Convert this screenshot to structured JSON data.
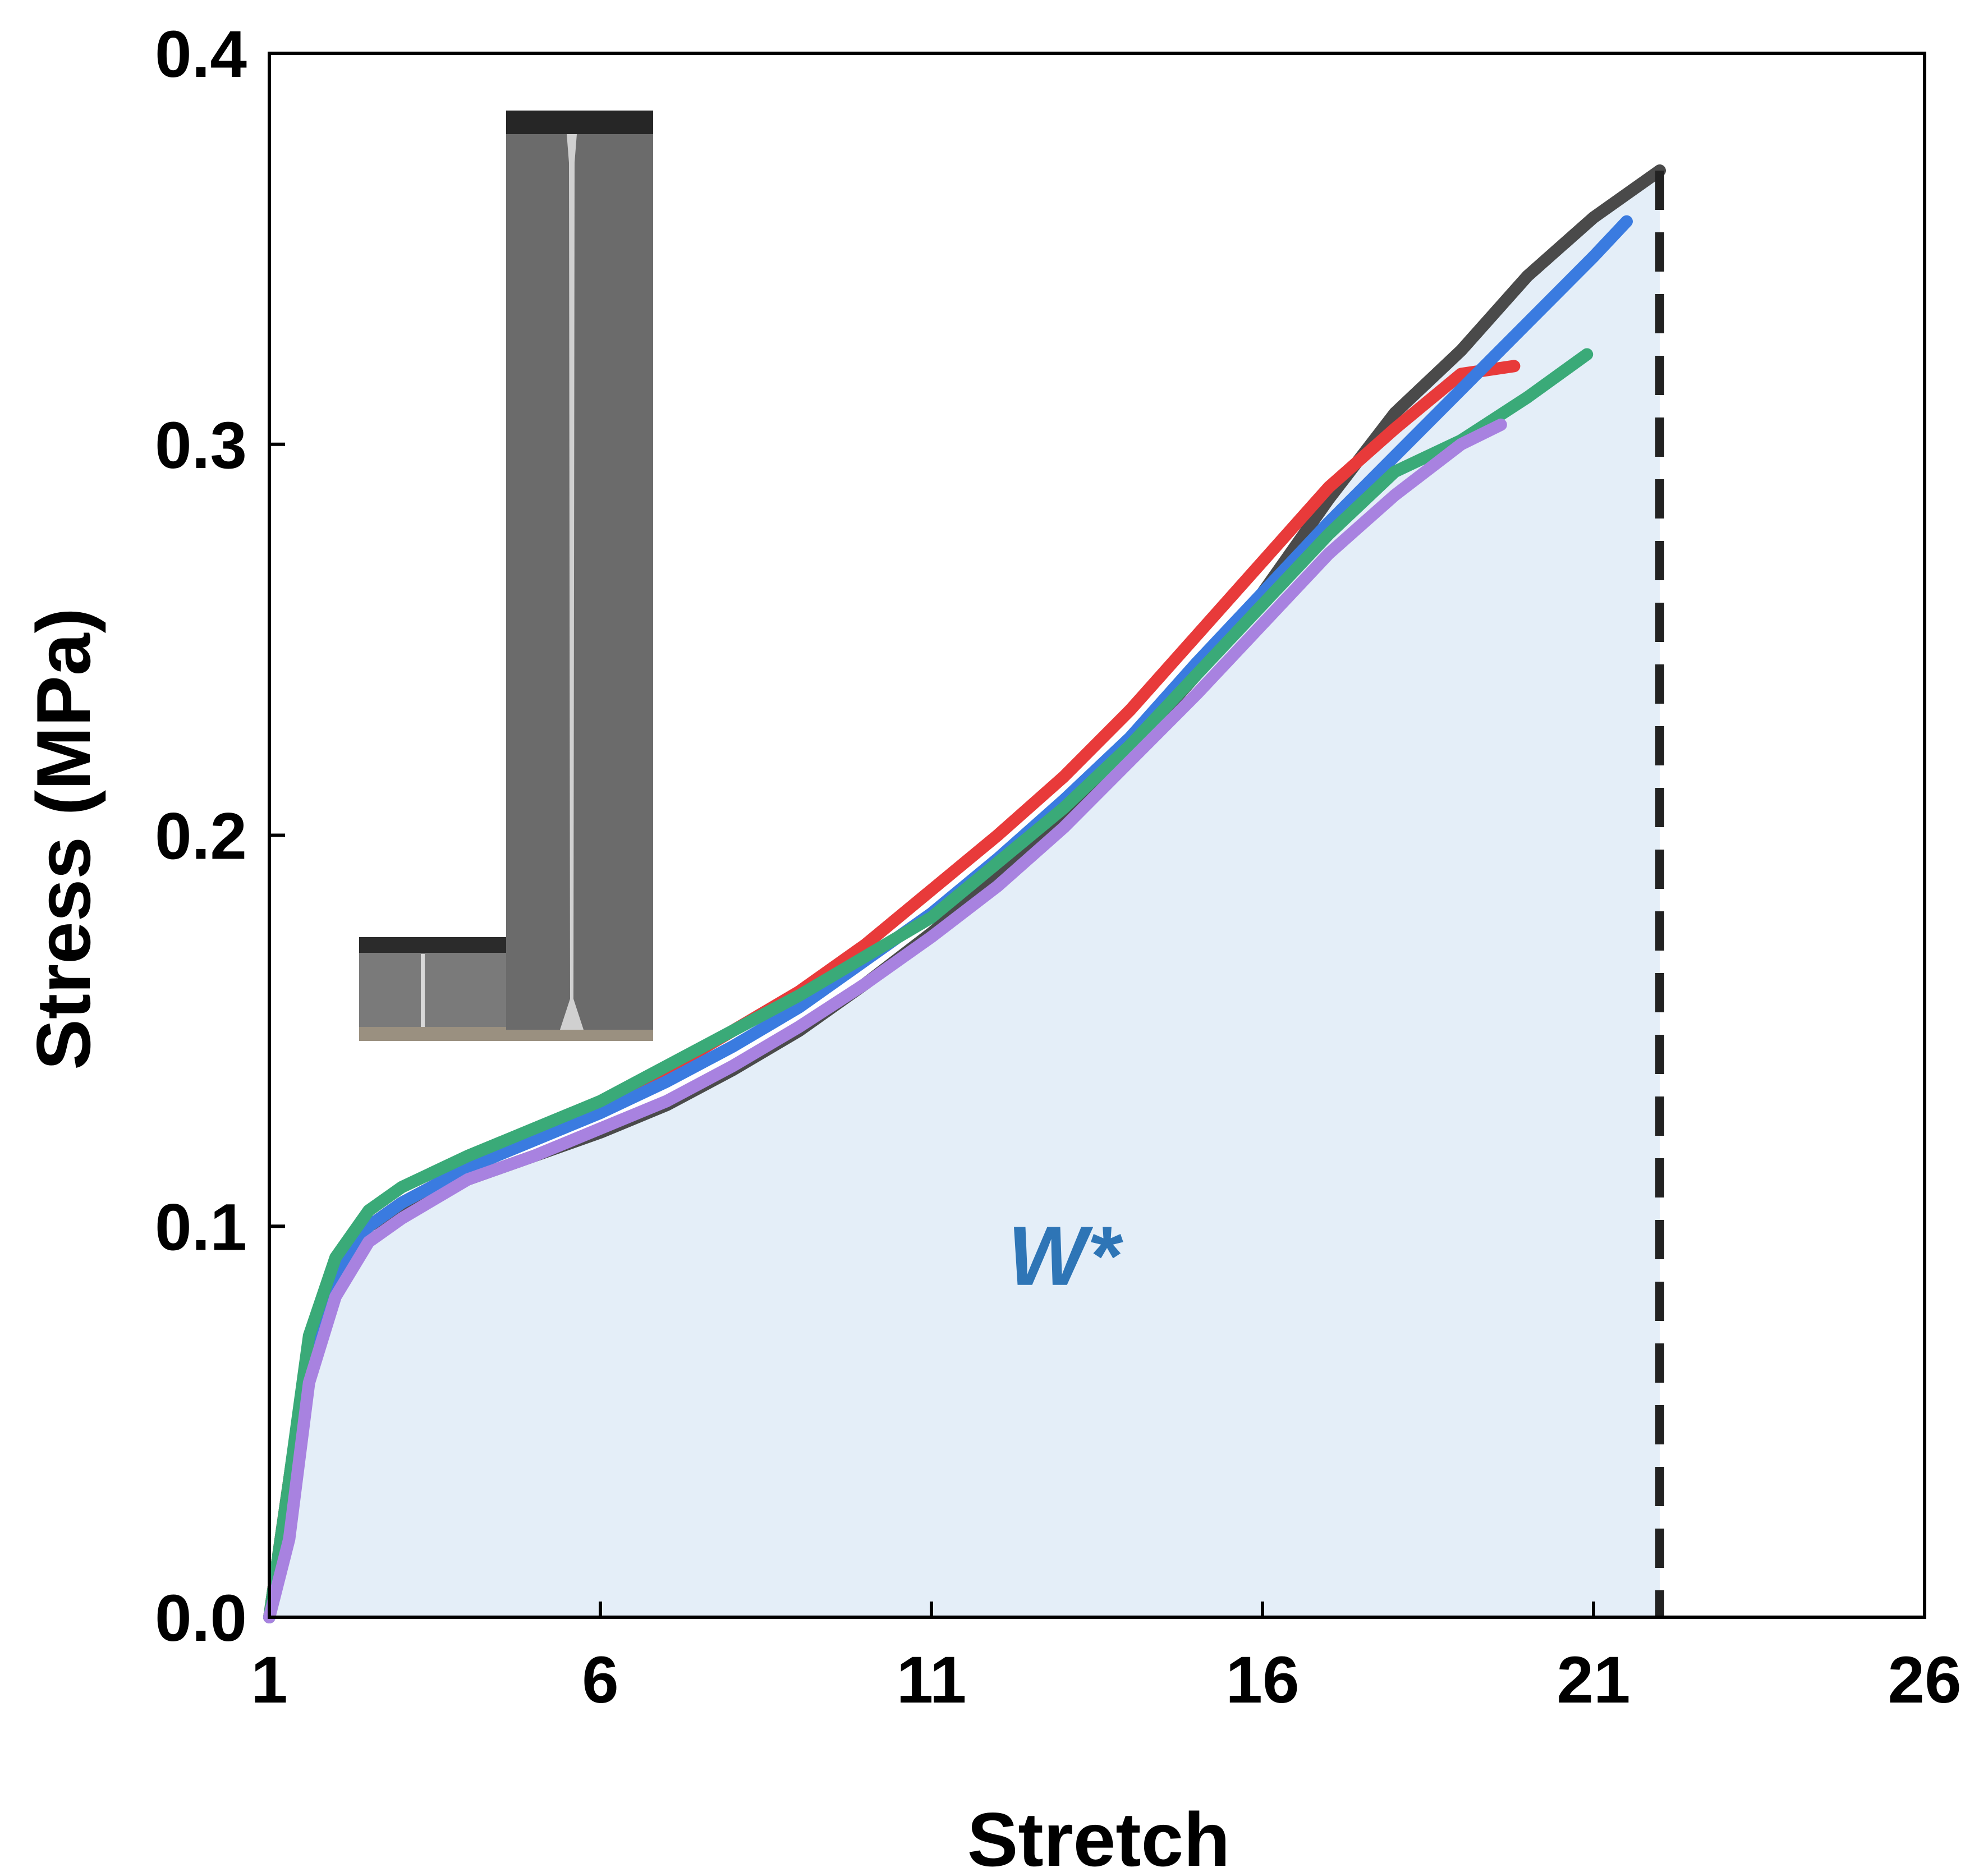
{
  "chart_data": {
    "type": "line",
    "xlabel": "Stretch",
    "ylabel": "Stress (MPa)",
    "xlim": [
      1,
      26
    ],
    "ylim": [
      0.0,
      0.4
    ],
    "x_ticks": [
      "1",
      "6",
      "11",
      "16",
      "21",
      "26"
    ],
    "y_ticks": [
      "0.0",
      "0.1",
      "0.2",
      "0.3",
      "0.4"
    ],
    "grid": false,
    "annotation": {
      "text": "W*",
      "x": 13.0,
      "y": 0.085,
      "color": "#2e75b6"
    },
    "fill_color": "#e4eef8",
    "dashed_line": {
      "x": 22.0,
      "color": "#222222"
    },
    "inset": {
      "description_visible": "photo of stretched sample",
      "left_panel_color": "#7a7a7a",
      "right_panel_color": "#6b6b6b"
    },
    "series": [
      {
        "color": "#4a4a4a",
        "x": [
          1.0,
          1.3,
          1.6,
          2.0,
          2.5,
          3.0,
          4.0,
          5.0,
          6.0,
          7.0,
          8.0,
          9.0,
          10.0,
          11.0,
          12.0,
          13.0,
          14.0,
          15.0,
          16.0,
          17.0,
          18.0,
          19.0,
          20.0,
          21.0,
          22.0
        ],
        "y": [
          0.0,
          0.035,
          0.07,
          0.09,
          0.1,
          0.105,
          0.112,
          0.118,
          0.124,
          0.131,
          0.14,
          0.15,
          0.162,
          0.175,
          0.189,
          0.205,
          0.222,
          0.241,
          0.262,
          0.286,
          0.308,
          0.324,
          0.343,
          0.358,
          0.37
        ]
      },
      {
        "color": "#e83a3a",
        "x": [
          1.0,
          1.3,
          1.6,
          2.0,
          2.5,
          3.0,
          4.0,
          5.0,
          6.0,
          7.0,
          8.0,
          9.0,
          10.0,
          11.0,
          12.0,
          13.0,
          14.0,
          15.0,
          16.0,
          17.0,
          18.0,
          19.0,
          19.8
        ],
        "y": [
          0.0,
          0.035,
          0.07,
          0.088,
          0.1,
          0.106,
          0.115,
          0.123,
          0.131,
          0.14,
          0.15,
          0.16,
          0.172,
          0.186,
          0.2,
          0.215,
          0.232,
          0.251,
          0.27,
          0.289,
          0.304,
          0.318,
          0.32
        ]
      },
      {
        "color": "#3a7be0",
        "x": [
          1.0,
          1.3,
          1.6,
          2.0,
          2.5,
          3.0,
          4.0,
          5.0,
          6.0,
          7.0,
          8.0,
          9.0,
          10.0,
          11.0,
          12.0,
          13.0,
          14.0,
          15.0,
          16.0,
          17.0,
          18.0,
          19.0,
          20.0,
          21.0,
          21.5
        ],
        "y": [
          0.0,
          0.03,
          0.066,
          0.088,
          0.1,
          0.106,
          0.115,
          0.122,
          0.129,
          0.137,
          0.146,
          0.156,
          0.168,
          0.18,
          0.194,
          0.209,
          0.225,
          0.244,
          0.262,
          0.28,
          0.297,
          0.314,
          0.331,
          0.348,
          0.357
        ]
      },
      {
        "color": "#3aaa78",
        "x": [
          1.0,
          1.3,
          1.6,
          2.0,
          2.5,
          3.0,
          4.0,
          5.0,
          6.0,
          7.0,
          8.0,
          9.0,
          10.0,
          11.0,
          12.0,
          13.0,
          14.0,
          15.0,
          16.0,
          17.0,
          18.0,
          19.0,
          20.0,
          20.9
        ],
        "y": [
          0.0,
          0.035,
          0.072,
          0.092,
          0.104,
          0.11,
          0.118,
          0.125,
          0.132,
          0.141,
          0.15,
          0.159,
          0.169,
          0.179,
          0.193,
          0.207,
          0.223,
          0.241,
          0.259,
          0.277,
          0.293,
          0.301,
          0.312,
          0.323
        ]
      },
      {
        "color": "#a882e0",
        "x": [
          1.0,
          1.3,
          1.6,
          2.0,
          2.5,
          3.0,
          4.0,
          5.0,
          6.0,
          7.0,
          8.0,
          9.0,
          10.0,
          11.0,
          12.0,
          13.0,
          14.0,
          15.0,
          16.0,
          17.0,
          18.0,
          19.0,
          19.6
        ],
        "y": [
          0.0,
          0.02,
          0.06,
          0.082,
          0.096,
          0.102,
          0.112,
          0.118,
          0.125,
          0.132,
          0.141,
          0.151,
          0.162,
          0.174,
          0.187,
          0.202,
          0.219,
          0.236,
          0.254,
          0.272,
          0.287,
          0.3,
          0.305
        ]
      }
    ]
  }
}
